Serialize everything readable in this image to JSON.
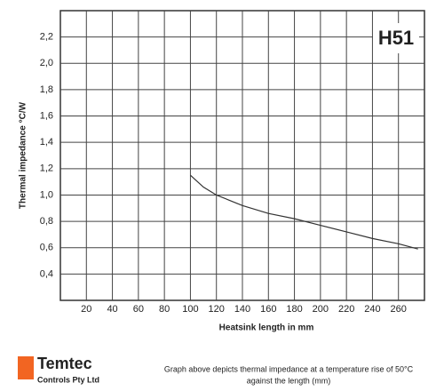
{
  "chart_data": {
    "type": "line",
    "annotation": "H51",
    "xlabel": "Heatsink length in mm",
    "ylabel": "Thermal impedance  °C/W",
    "x": [
      100,
      110,
      120,
      130,
      140,
      160,
      180,
      200,
      220,
      240,
      260,
      275
    ],
    "series": [
      {
        "color": "#333333",
        "values": [
          1.15,
          1.06,
          1.0,
          0.96,
          0.92,
          0.86,
          0.82,
          0.77,
          0.72,
          0.67,
          0.63,
          0.59
        ]
      }
    ],
    "xlim": [
      0,
      280
    ],
    "xticks": [
      20,
      40,
      60,
      80,
      100,
      120,
      140,
      160,
      180,
      200,
      220,
      240,
      260
    ],
    "ylim": [
      0.2,
      2.4
    ],
    "yticks": [
      {
        "value": 0.4,
        "label": "0,4"
      },
      {
        "value": 0.6,
        "label": "0,6"
      },
      {
        "value": 0.8,
        "label": "0,8"
      },
      {
        "value": 1.0,
        "label": "1,0"
      },
      {
        "value": 1.2,
        "label": "1,2"
      },
      {
        "value": 1.4,
        "label": "1,4"
      },
      {
        "value": 1.6,
        "label": "1,6"
      },
      {
        "value": 1.8,
        "label": "1,8"
      },
      {
        "value": 2.0,
        "label": "2,0"
      },
      {
        "value": 2.2,
        "label": "2,2"
      }
    ],
    "grid": true
  },
  "footer": {
    "logo": "Temtec",
    "company": "Controls Pty Ltd",
    "caption": [
      "Graph above depicts thermal impedance at a temperature rise of 50°C",
      "against the length (mm)"
    ]
  }
}
